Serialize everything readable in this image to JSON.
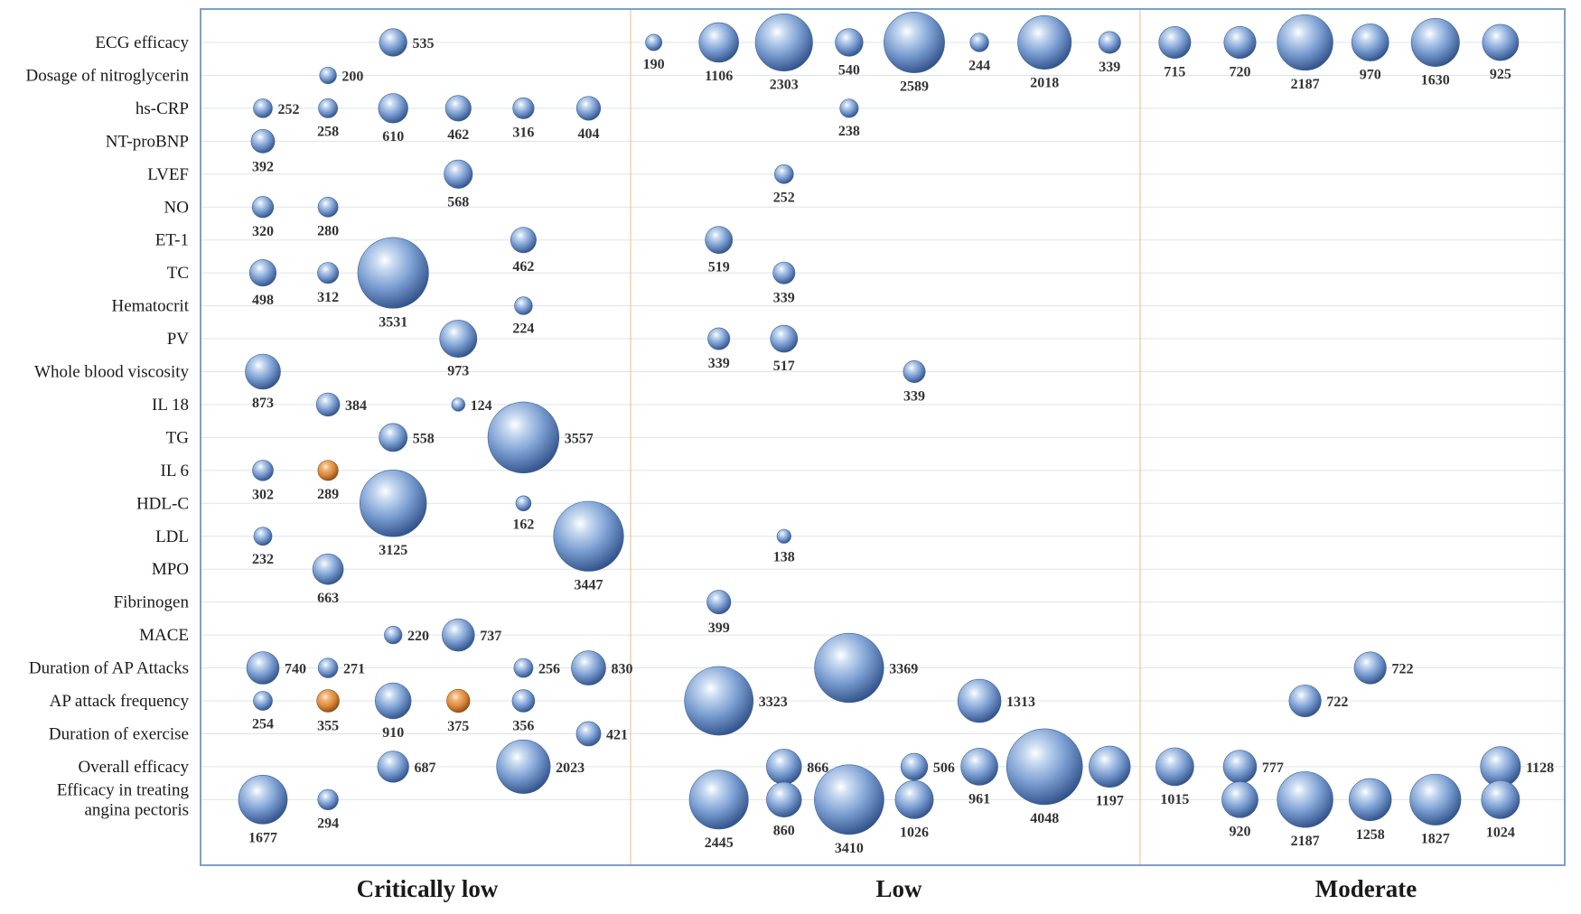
{
  "chart_data": {
    "type": "scatter",
    "variant": "bubble",
    "groups": [
      "Critically low",
      "Low",
      "Moderate"
    ],
    "rows": [
      "ECG efficacy",
      "Dosage of nitroglycerin",
      "hs-CRP",
      "NT-proBNP",
      "LVEF",
      "NO",
      "ET-1",
      "TC",
      "Hematocrit",
      "PV",
      "Whole blood viscosity",
      "IL 18",
      "TG",
      "IL 6",
      "HDL-C",
      "LDL",
      "MPO",
      "Fibrinogen",
      "MACE",
      "Duration of AP Attacks",
      "AP attack frequency",
      "Duration of exercise",
      "Overall efficacy",
      "Efficacy in treating|angina pectoris"
    ],
    "colors": {
      "blue": "#6f93c8",
      "orange": "#d9883a",
      "frame": "#7f9ec8",
      "divider": "#f0c8a0"
    },
    "points": [
      {
        "row": 0,
        "col": 3,
        "value": 535,
        "label_pos": "right"
      },
      {
        "row": 0,
        "col": 7,
        "value": 190,
        "label_pos": "below"
      },
      {
        "row": 0,
        "col": 8,
        "value": 1106,
        "label_pos": "below"
      },
      {
        "row": 0,
        "col": 9,
        "value": 2303,
        "label_pos": "below"
      },
      {
        "row": 0,
        "col": 10,
        "value": 540,
        "label_pos": "below"
      },
      {
        "row": 0,
        "col": 11,
        "value": 2589,
        "label_pos": "below"
      },
      {
        "row": 0,
        "col": 12,
        "value": 244,
        "label_pos": "below"
      },
      {
        "row": 0,
        "col": 13,
        "value": 2018,
        "label_pos": "below"
      },
      {
        "row": 0,
        "col": 14,
        "value": 339,
        "label_pos": "below"
      },
      {
        "row": 0,
        "col": 15,
        "value": 715,
        "label_pos": "below"
      },
      {
        "row": 0,
        "col": 16,
        "value": 720,
        "label_pos": "below"
      },
      {
        "row": 0,
        "col": 17,
        "value": 2187,
        "label_pos": "below"
      },
      {
        "row": 0,
        "col": 18,
        "value": 970,
        "label_pos": "below"
      },
      {
        "row": 0,
        "col": 19,
        "value": 1630,
        "label_pos": "below"
      },
      {
        "row": 0,
        "col": 20,
        "value": 925,
        "label_pos": "below"
      },
      {
        "row": 1,
        "col": 2,
        "value": 200,
        "label_pos": "right"
      },
      {
        "row": 2,
        "col": 1,
        "value": 252,
        "label_pos": "right"
      },
      {
        "row": 2,
        "col": 2,
        "value": 258,
        "label_pos": "below"
      },
      {
        "row": 2,
        "col": 3,
        "value": 610,
        "label_pos": "below"
      },
      {
        "row": 2,
        "col": 4,
        "value": 462,
        "label_pos": "below"
      },
      {
        "row": 2,
        "col": 5,
        "value": 316,
        "label_pos": "below"
      },
      {
        "row": 2,
        "col": 6,
        "value": 404,
        "label_pos": "below"
      },
      {
        "row": 2,
        "col": 10,
        "value": 238,
        "label_pos": "below"
      },
      {
        "row": 3,
        "col": 1,
        "value": 392,
        "label_pos": "below"
      },
      {
        "row": 4,
        "col": 4,
        "value": 568,
        "label_pos": "below"
      },
      {
        "row": 4,
        "col": 9,
        "value": 252,
        "label_pos": "below"
      },
      {
        "row": 5,
        "col": 1,
        "value": 320,
        "label_pos": "below"
      },
      {
        "row": 5,
        "col": 2,
        "value": 280,
        "label_pos": "below"
      },
      {
        "row": 6,
        "col": 5,
        "value": 462,
        "label_pos": "below"
      },
      {
        "row": 6,
        "col": 8,
        "value": 519,
        "label_pos": "below"
      },
      {
        "row": 7,
        "col": 1,
        "value": 498,
        "label_pos": "below"
      },
      {
        "row": 7,
        "col": 2,
        "value": 312,
        "label_pos": "below"
      },
      {
        "row": 7,
        "col": 3,
        "value": 3531,
        "label_pos": "below"
      },
      {
        "row": 7,
        "col": 9,
        "value": 339,
        "label_pos": "below"
      },
      {
        "row": 8,
        "col": 5,
        "value": 224,
        "label_pos": "below"
      },
      {
        "row": 9,
        "col": 4,
        "value": 973,
        "label_pos": "below"
      },
      {
        "row": 9,
        "col": 8,
        "value": 339,
        "label_pos": "below"
      },
      {
        "row": 9,
        "col": 9,
        "value": 517,
        "label_pos": "below"
      },
      {
        "row": 10,
        "col": 1,
        "value": 873,
        "label_pos": "below"
      },
      {
        "row": 10,
        "col": 11,
        "value": 339,
        "label_pos": "below"
      },
      {
        "row": 11,
        "col": 2,
        "value": 384,
        "label_pos": "right"
      },
      {
        "row": 11,
        "col": 4,
        "value": 124,
        "label_pos": "right"
      },
      {
        "row": 12,
        "col": 3,
        "value": 558,
        "label_pos": "right"
      },
      {
        "row": 12,
        "col": 5,
        "value": 3557,
        "label_pos": "right"
      },
      {
        "row": 13,
        "col": 1,
        "value": 302,
        "label_pos": "below"
      },
      {
        "row": 13,
        "col": 2,
        "value": 289,
        "label_pos": "below",
        "color": "orange"
      },
      {
        "row": 14,
        "col": 3,
        "value": 3125,
        "label_pos": "below"
      },
      {
        "row": 14,
        "col": 5,
        "value": 162,
        "label_pos": "below"
      },
      {
        "row": 15,
        "col": 1,
        "value": 232,
        "label_pos": "below"
      },
      {
        "row": 15,
        "col": 6,
        "value": 3447,
        "label_pos": "below"
      },
      {
        "row": 15,
        "col": 9,
        "value": 138,
        "label_pos": "below"
      },
      {
        "row": 16,
        "col": 2,
        "value": 663,
        "label_pos": "below"
      },
      {
        "row": 17,
        "col": 8,
        "value": 399,
        "label_pos": "below"
      },
      {
        "row": 18,
        "col": 3,
        "value": 220,
        "label_pos": "right"
      },
      {
        "row": 18,
        "col": 4,
        "value": 737,
        "label_pos": "right"
      },
      {
        "row": 19,
        "col": 1,
        "value": 740,
        "label_pos": "right"
      },
      {
        "row": 19,
        "col": 2,
        "value": 271,
        "label_pos": "right"
      },
      {
        "row": 19,
        "col": 5,
        "value": 256,
        "label_pos": "right"
      },
      {
        "row": 19,
        "col": 6,
        "value": 830,
        "label_pos": "right"
      },
      {
        "row": 19,
        "col": 10,
        "value": 3369,
        "label_pos": "right"
      },
      {
        "row": 19,
        "col": 18,
        "value": 722,
        "label_pos": "right"
      },
      {
        "row": 20,
        "col": 1,
        "value": 254,
        "label_pos": "below"
      },
      {
        "row": 20,
        "col": 2,
        "value": 355,
        "label_pos": "below",
        "color": "orange"
      },
      {
        "row": 20,
        "col": 3,
        "value": 910,
        "label_pos": "below"
      },
      {
        "row": 20,
        "col": 4,
        "value": 375,
        "label_pos": "below",
        "color": "orange"
      },
      {
        "row": 20,
        "col": 5,
        "value": 356,
        "label_pos": "below"
      },
      {
        "row": 20,
        "col": 8,
        "value": 3323,
        "label_pos": "right"
      },
      {
        "row": 20,
        "col": 12,
        "value": 1313,
        "label_pos": "right"
      },
      {
        "row": 20,
        "col": 17,
        "value": 722,
        "label_pos": "right"
      },
      {
        "row": 21,
        "col": 6,
        "value": 421,
        "label_pos": "right"
      },
      {
        "row": 22,
        "col": 3,
        "value": 687,
        "label_pos": "right"
      },
      {
        "row": 22,
        "col": 5,
        "value": 2023,
        "label_pos": "right"
      },
      {
        "row": 22,
        "col": 9,
        "value": 866,
        "label_pos": "right"
      },
      {
        "row": 22,
        "col": 11,
        "value": 506,
        "label_pos": "right"
      },
      {
        "row": 22,
        "col": 12,
        "value": 961,
        "label_pos": "below"
      },
      {
        "row": 22,
        "col": 13,
        "value": 4048,
        "label_pos": "below"
      },
      {
        "row": 22,
        "col": 14,
        "value": 1197,
        "label_pos": "below"
      },
      {
        "row": 22,
        "col": 15,
        "value": 1015,
        "label_pos": "below"
      },
      {
        "row": 22,
        "col": 16,
        "value": 777,
        "label_pos": "right"
      },
      {
        "row": 22,
        "col": 20,
        "value": 1128,
        "label_pos": "right"
      },
      {
        "row": 23,
        "col": 1,
        "value": 1677,
        "label_pos": "below"
      },
      {
        "row": 23,
        "col": 2,
        "value": 294,
        "label_pos": "below"
      },
      {
        "row": 23,
        "col": 8,
        "value": 2445,
        "label_pos": "below"
      },
      {
        "row": 23,
        "col": 9,
        "value": 860,
        "label_pos": "below"
      },
      {
        "row": 23,
        "col": 10,
        "value": 3410,
        "label_pos": "below"
      },
      {
        "row": 23,
        "col": 11,
        "value": 1026,
        "label_pos": "below"
      },
      {
        "row": 23,
        "col": 16,
        "value": 920,
        "label_pos": "below"
      },
      {
        "row": 23,
        "col": 17,
        "value": 2187,
        "label_pos": "below"
      },
      {
        "row": 23,
        "col": 18,
        "value": 1258,
        "label_pos": "below"
      },
      {
        "row": 23,
        "col": 19,
        "value": 1827,
        "label_pos": "below"
      },
      {
        "row": 23,
        "col": 20,
        "value": 1024,
        "label_pos": "below"
      }
    ]
  }
}
